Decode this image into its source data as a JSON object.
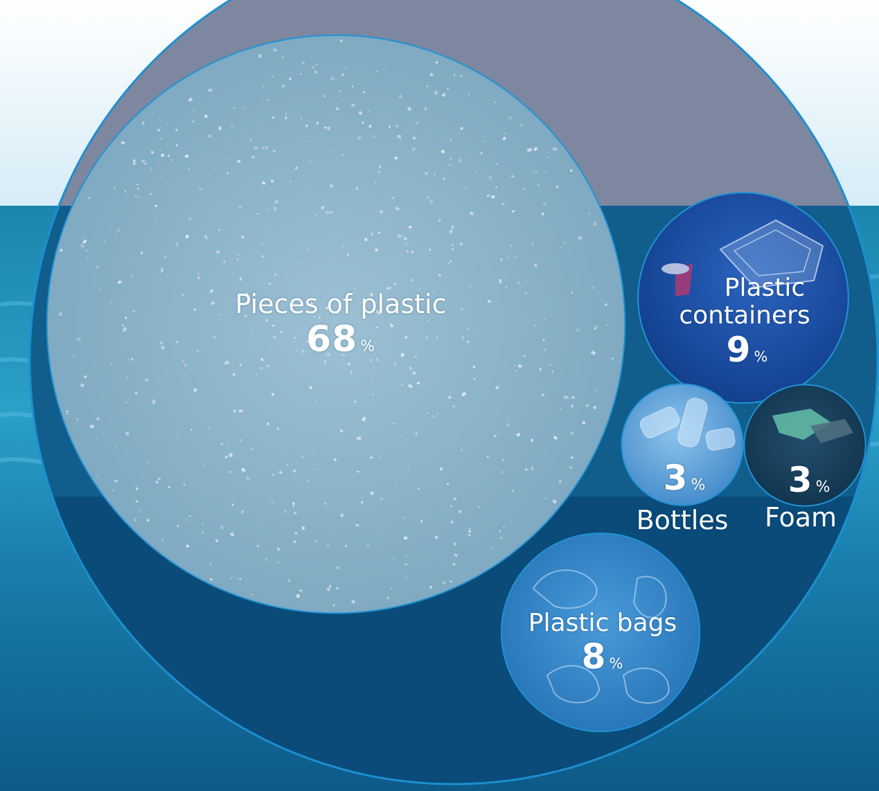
{
  "colors": {
    "sky_top": "#ffffff",
    "sky_bottom": "#dbeef8",
    "sea_surface": "#1f8fb7",
    "sea_deep": "#0a4f7d",
    "outer_top": "#7d879f",
    "outer_bottom": "#084a78",
    "outer_ring": "#1d8fd0",
    "pieces_fill": "#8ab2c8",
    "containers_fill": "#164a9e",
    "bottles_fill": "#4f95d2",
    "foam_fill": "#123a55",
    "bags_fill": "#2e80c4"
  },
  "chart_data": {
    "type": "bubble",
    "unit": "%",
    "series": [
      {
        "name": "Pieces of plastic",
        "value": 68,
        "color": "#8ab2c8",
        "icon": "plastic-fragments"
      },
      {
        "name": "Plastic containers",
        "value": 9,
        "color": "#164a9e",
        "icon": "plastic-container-tray"
      },
      {
        "name": "Plastic bags",
        "value": 8,
        "color": "#2e80c4",
        "icon": "plastic-bags"
      },
      {
        "name": "Bottles",
        "value": 3,
        "color": "#4f95d2",
        "icon": "plastic-bottles"
      },
      {
        "name": "Foam",
        "value": 3,
        "color": "#123a55",
        "icon": "foam-pieces"
      }
    ]
  },
  "labels": {
    "pieces": {
      "line1": "Pieces of plastic",
      "value": "68",
      "unit": "%"
    },
    "containers": {
      "line1": "Plastic",
      "line2": "containers",
      "value": "9",
      "unit": "%"
    },
    "bags": {
      "line1": "Plastic bags",
      "value": "8",
      "unit": "%"
    },
    "bottles": {
      "name": "Bottles",
      "value": "3",
      "unit": "%"
    },
    "foam": {
      "name": "Foam",
      "value": "3",
      "unit": "%"
    }
  }
}
